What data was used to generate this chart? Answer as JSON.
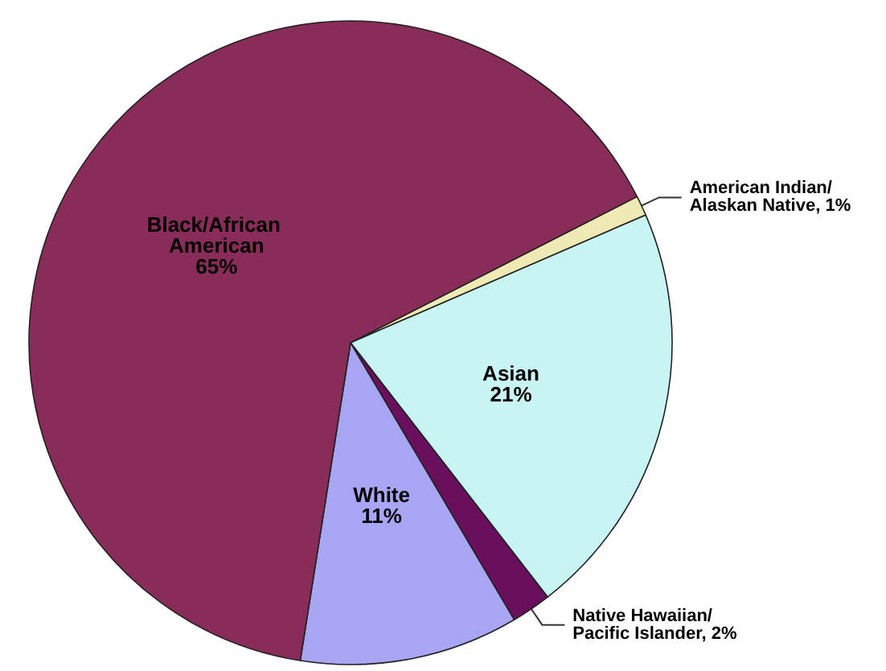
{
  "chart_data": {
    "type": "pie",
    "categories": [
      "American Indian/ Alaskan Native",
      "Asian",
      "Native Hawaiian/ Pacific Islander",
      "White",
      "Black/African American"
    ],
    "values": [
      1,
      21,
      2,
      11,
      65
    ],
    "colors": [
      "#efe9b4",
      "#c8f4f4",
      "#6a0f5e",
      "#a8a6f2",
      "#8a2c5a"
    ],
    "value_labels": [
      "1%",
      "21%",
      "2%",
      "11%",
      "65%"
    ],
    "legend": false
  }
}
